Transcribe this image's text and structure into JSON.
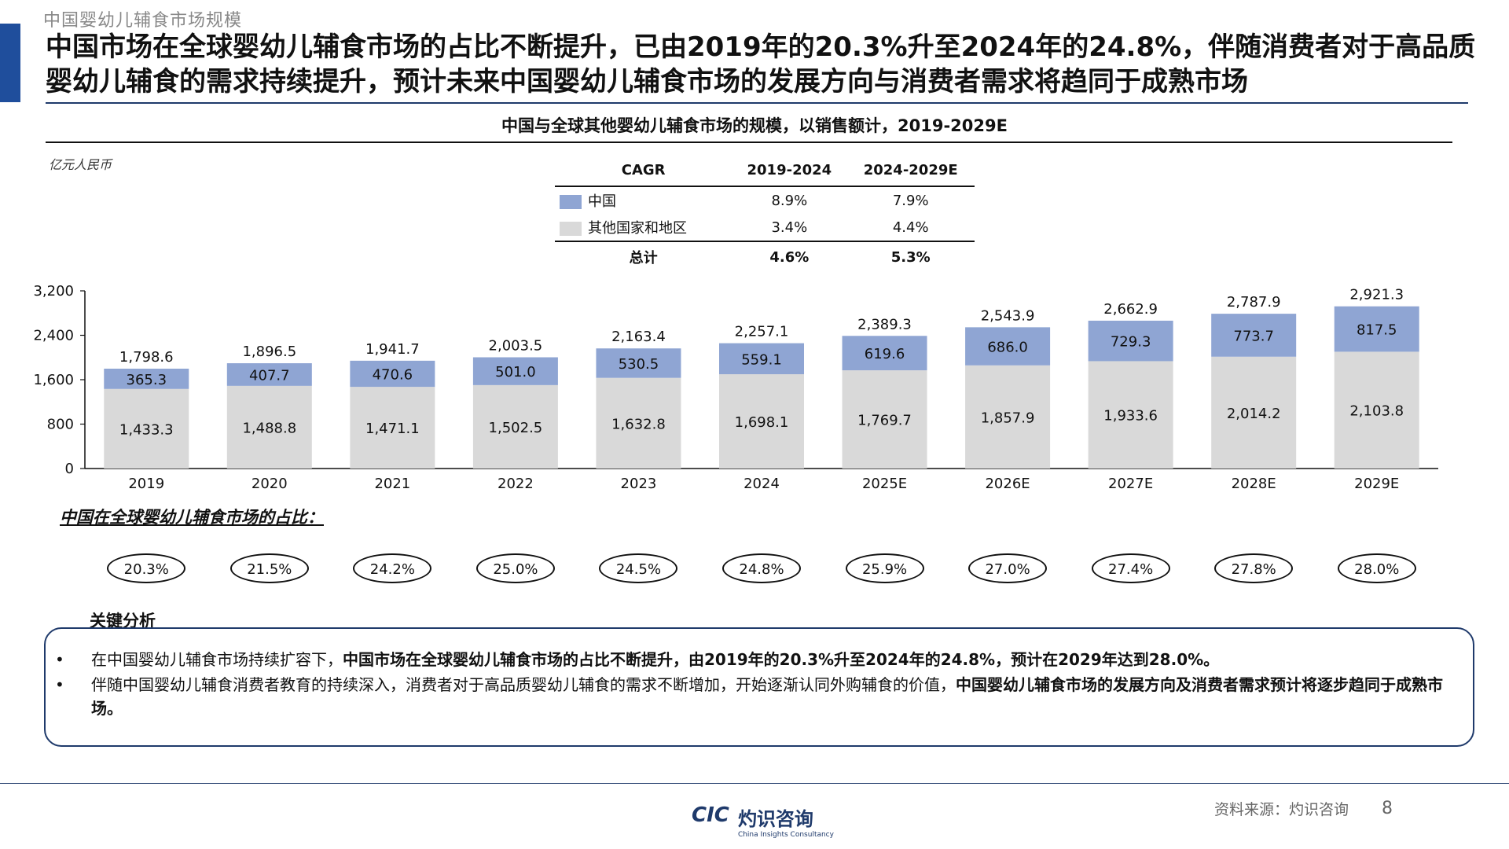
{
  "section_label": "中国婴幼儿辅食市场规模",
  "headline": "中国市场在全球婴幼儿辅食市场的占比不断提升，已由2019年的20.3%升至2024年的24.8%，伴随消费者对于高品质婴幼儿辅食的需求持续提升，预计未来中国婴幼儿辅食市场的发展方向与消费者需求将趋同于成熟市场",
  "colors": {
    "accent": "#1f4e9c",
    "china": "#8fa5d3",
    "other": "#d9d9d9",
    "rule": "#1f3a6b"
  },
  "cagr_table": {
    "headers": [
      "CAGR",
      "2019-2024",
      "2024-2029E"
    ],
    "rows": [
      {
        "label": "中国",
        "a": "8.9%",
        "b": "7.9%"
      },
      {
        "label": "其他国家和地区",
        "a": "3.4%",
        "b": "4.4%"
      },
      {
        "label": "总计",
        "a": "4.6%",
        "b": "5.3%"
      }
    ]
  },
  "chart_data": {
    "type": "bar",
    "stacked": true,
    "title": "中国与全球其他婴幼儿辅食市场的规模，以销售额计，2019-2029E",
    "unit": "亿元人民币",
    "categories": [
      "2019",
      "2020",
      "2021",
      "2022",
      "2023",
      "2024",
      "2025E",
      "2026E",
      "2027E",
      "2028E",
      "2029E"
    ],
    "series": [
      {
        "name": "其他国家和地区",
        "color": "#d9d9d9",
        "values": [
          1433.3,
          1488.8,
          1471.1,
          1502.5,
          1632.8,
          1698.1,
          1769.7,
          1857.9,
          1933.6,
          2014.2,
          2103.8
        ],
        "labels": [
          "1,433.3",
          "1,488.8",
          "1,471.1",
          "1,502.5",
          "1,632.8",
          "1,698.1",
          "1,769.7",
          "1,857.9",
          "1,933.6",
          "2,014.2",
          "2,103.8"
        ]
      },
      {
        "name": "中国",
        "color": "#8fa5d3",
        "values": [
          365.3,
          407.7,
          470.6,
          501.0,
          530.5,
          559.1,
          619.6,
          686.0,
          729.3,
          773.7,
          817.5
        ],
        "labels": [
          "365.3",
          "407.7",
          "470.6",
          "501.0",
          "530.5",
          "559.1",
          "619.6",
          "686.0",
          "729.3",
          "773.7",
          "817.5"
        ]
      }
    ],
    "totals": [
      "1,798.6",
      "1,896.5",
      "1,941.7",
      "2,003.5",
      "2,163.4",
      "2,257.1",
      "2,389.3",
      "2,543.9",
      "2,662.9",
      "2,787.9",
      "2,921.3"
    ],
    "yticks": [
      "0",
      "800",
      "1,600",
      "2,400",
      "3,200"
    ],
    "ylim": [
      0,
      3200
    ],
    "grid": false
  },
  "share_label": "中国在全球婴幼儿辅食市场的占比：",
  "shares": [
    "20.3%",
    "21.5%",
    "24.2%",
    "25.0%",
    "24.5%",
    "24.8%",
    "25.9%",
    "27.0%",
    "27.4%",
    "27.8%",
    "28.0%"
  ],
  "key_analysis": {
    "title": "关键分析",
    "bullets": [
      {
        "plain": "在中国婴幼儿辅食市场持续扩容下，",
        "bold": "中国市场在全球婴幼儿辅食市场的占比不断提升，由2019年的20.3%升至2024年的24.8%，预计在2029年达到28.0%。"
      },
      {
        "plain": "伴随中国婴幼儿辅食消费者教育的持续深入，消费者对于高品质婴幼儿辅食的需求不断增加，开始逐渐认同外购辅食的价值，",
        "bold": "中国婴幼儿辅食市场的发展方向及消费者需求预计将逐步趋同于成熟市场。"
      }
    ]
  },
  "footer": {
    "logo_mark": "CIC",
    "logo_cn": "灼识咨询",
    "logo_en": "China Insights Consultancy",
    "source": "资料来源：灼识咨询",
    "page": "8"
  }
}
